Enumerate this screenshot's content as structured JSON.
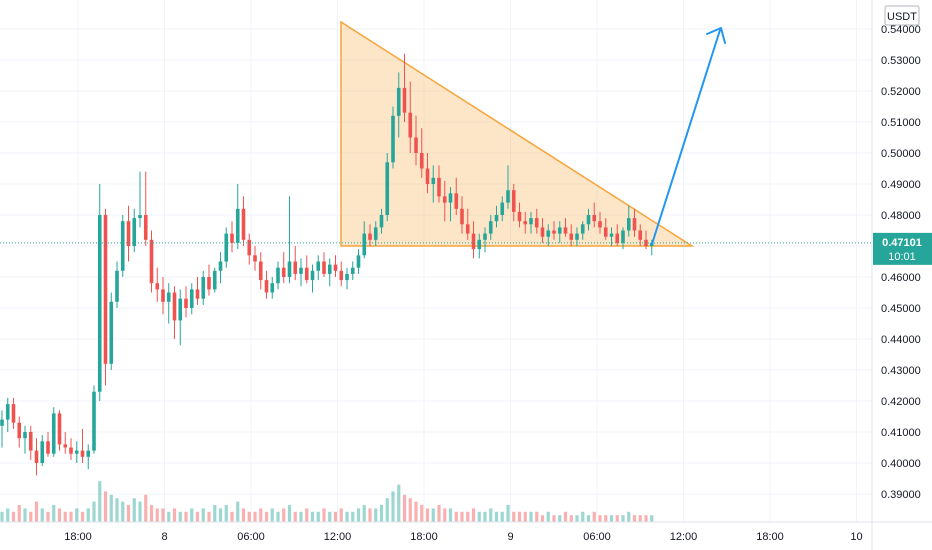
{
  "chart_data": {
    "type": "candlestick",
    "currency": "USDT",
    "ylim": [
      0.383,
      0.548
    ],
    "y_ticks": [
      0.39,
      0.4,
      0.41,
      0.42,
      0.43,
      0.44,
      0.45,
      0.46,
      0.47,
      0.48,
      0.49,
      0.5,
      0.51,
      0.52,
      0.53,
      0.54
    ],
    "y_tick_labels": [
      "0.39000",
      "0.40000",
      "0.41000",
      "0.42000",
      "0.43000",
      "0.44000",
      "0.45000",
      "0.46000",
      "0.47000",
      "0.48000",
      "0.49000",
      "0.50000",
      "0.51000",
      "0.52000",
      "0.53000",
      "0.54000"
    ],
    "x_ticks": [
      {
        "label": "18:00",
        "t": 0
      },
      {
        "label": "8",
        "t": 1
      },
      {
        "label": "06:00",
        "t": 2
      },
      {
        "label": "12:00",
        "t": 3
      },
      {
        "label": "18:00",
        "t": 4
      },
      {
        "label": "9",
        "t": 5
      },
      {
        "label": "06:00",
        "t": 6
      },
      {
        "label": "12:00",
        "t": 7
      },
      {
        "label": "18:00",
        "t": 8
      },
      {
        "label": "10",
        "t": 9
      }
    ],
    "last_price": 0.47101,
    "last_price_label": "0.47101",
    "countdown_label": "10:01",
    "colors": {
      "up": "#26a69a",
      "down": "#ef5350",
      "triangle": "#f7a43a",
      "arrow": "#2196f3",
      "grid": "#f0f3fa"
    },
    "candles": [
      [
        0.412,
        0.417,
        0.405,
        0.414
      ],
      [
        0.414,
        0.421,
        0.41,
        0.419
      ],
      [
        0.419,
        0.421,
        0.411,
        0.413
      ],
      [
        0.413,
        0.415,
        0.405,
        0.408
      ],
      [
        0.408,
        0.412,
        0.403,
        0.41
      ],
      [
        0.41,
        0.412,
        0.401,
        0.404
      ],
      [
        0.404,
        0.408,
        0.396,
        0.4
      ],
      [
        0.4,
        0.409,
        0.399,
        0.407
      ],
      [
        0.407,
        0.41,
        0.402,
        0.403
      ],
      [
        0.403,
        0.418,
        0.402,
        0.416
      ],
      [
        0.416,
        0.417,
        0.404,
        0.406
      ],
      [
        0.406,
        0.41,
        0.403,
        0.405
      ],
      [
        0.405,
        0.408,
        0.401,
        0.403
      ],
      [
        0.403,
        0.407,
        0.4,
        0.404
      ],
      [
        0.404,
        0.411,
        0.4,
        0.402
      ],
      [
        0.402,
        0.406,
        0.398,
        0.404
      ],
      [
        0.404,
        0.425,
        0.403,
        0.423
      ],
      [
        0.423,
        0.49,
        0.42,
        0.48
      ],
      [
        0.48,
        0.482,
        0.425,
        0.432
      ],
      [
        0.432,
        0.455,
        0.43,
        0.452
      ],
      [
        0.452,
        0.465,
        0.45,
        0.462
      ],
      [
        0.462,
        0.48,
        0.46,
        0.478
      ],
      [
        0.478,
        0.483,
        0.465,
        0.47
      ],
      [
        0.47,
        0.482,
        0.468,
        0.479
      ],
      [
        0.479,
        0.494,
        0.476,
        0.48
      ],
      [
        0.48,
        0.494,
        0.47,
        0.472
      ],
      [
        0.472,
        0.475,
        0.455,
        0.458
      ],
      [
        0.458,
        0.463,
        0.452,
        0.456
      ],
      [
        0.456,
        0.46,
        0.448,
        0.452
      ],
      [
        0.452,
        0.458,
        0.445,
        0.455
      ],
      [
        0.455,
        0.457,
        0.44,
        0.446
      ],
      [
        0.446,
        0.456,
        0.438,
        0.453
      ],
      [
        0.453,
        0.457,
        0.447,
        0.45
      ],
      [
        0.45,
        0.458,
        0.448,
        0.456
      ],
      [
        0.456,
        0.46,
        0.451,
        0.453
      ],
      [
        0.453,
        0.462,
        0.451,
        0.46
      ],
      [
        0.46,
        0.464,
        0.454,
        0.456
      ],
      [
        0.456,
        0.463,
        0.455,
        0.462
      ],
      [
        0.462,
        0.468,
        0.458,
        0.465
      ],
      [
        0.465,
        0.476,
        0.463,
        0.474
      ],
      [
        0.474,
        0.478,
        0.468,
        0.471
      ],
      [
        0.471,
        0.49,
        0.469,
        0.482
      ],
      [
        0.482,
        0.486,
        0.47,
        0.472
      ],
      [
        0.472,
        0.474,
        0.464,
        0.467
      ],
      [
        0.467,
        0.47,
        0.462,
        0.465
      ],
      [
        0.465,
        0.468,
        0.456,
        0.459
      ],
      [
        0.459,
        0.462,
        0.453,
        0.455
      ],
      [
        0.455,
        0.46,
        0.453,
        0.458
      ],
      [
        0.458,
        0.465,
        0.456,
        0.463
      ],
      [
        0.463,
        0.468,
        0.458,
        0.46
      ],
      [
        0.46,
        0.486,
        0.458,
        0.465
      ],
      [
        0.465,
        0.47,
        0.459,
        0.461
      ],
      [
        0.461,
        0.466,
        0.457,
        0.463
      ],
      [
        0.463,
        0.467,
        0.458,
        0.459
      ],
      [
        0.459,
        0.464,
        0.455,
        0.462
      ],
      [
        0.462,
        0.467,
        0.459,
        0.465
      ],
      [
        0.465,
        0.468,
        0.46,
        0.461
      ],
      [
        0.461,
        0.466,
        0.457,
        0.464
      ],
      [
        0.464,
        0.467,
        0.46,
        0.462
      ],
      [
        0.462,
        0.465,
        0.457,
        0.459
      ],
      [
        0.459,
        0.463,
        0.456,
        0.461
      ],
      [
        0.461,
        0.465,
        0.459,
        0.463
      ],
      [
        0.463,
        0.469,
        0.461,
        0.467
      ],
      [
        0.467,
        0.478,
        0.466,
        0.474
      ],
      [
        0.474,
        0.477,
        0.47,
        0.472
      ],
      [
        0.472,
        0.478,
        0.47,
        0.476
      ],
      [
        0.476,
        0.482,
        0.474,
        0.48
      ],
      [
        0.48,
        0.5,
        0.478,
        0.497
      ],
      [
        0.497,
        0.515,
        0.495,
        0.512
      ],
      [
        0.512,
        0.526,
        0.505,
        0.521
      ],
      [
        0.521,
        0.532,
        0.51,
        0.513
      ],
      [
        0.513,
        0.523,
        0.5,
        0.505
      ],
      [
        0.505,
        0.512,
        0.496,
        0.5
      ],
      [
        0.5,
        0.508,
        0.492,
        0.495
      ],
      [
        0.495,
        0.5,
        0.487,
        0.49
      ],
      [
        0.49,
        0.496,
        0.484,
        0.492
      ],
      [
        0.492,
        0.496,
        0.484,
        0.486
      ],
      [
        0.486,
        0.491,
        0.478,
        0.484
      ],
      [
        0.484,
        0.489,
        0.478,
        0.487
      ],
      [
        0.487,
        0.492,
        0.48,
        0.482
      ],
      [
        0.482,
        0.486,
        0.474,
        0.477
      ],
      [
        0.477,
        0.482,
        0.472,
        0.474
      ],
      [
        0.474,
        0.478,
        0.466,
        0.469
      ],
      [
        0.469,
        0.474,
        0.466,
        0.472
      ],
      [
        0.472,
        0.476,
        0.468,
        0.474
      ],
      [
        0.474,
        0.48,
        0.472,
        0.478
      ],
      [
        0.478,
        0.483,
        0.476,
        0.48
      ],
      [
        0.48,
        0.486,
        0.478,
        0.484
      ],
      [
        0.484,
        0.496,
        0.482,
        0.488
      ],
      [
        0.488,
        0.49,
        0.478,
        0.481
      ],
      [
        0.481,
        0.484,
        0.476,
        0.478
      ],
      [
        0.478,
        0.481,
        0.474,
        0.477
      ],
      [
        0.477,
        0.481,
        0.474,
        0.479
      ],
      [
        0.479,
        0.482,
        0.474,
        0.476
      ],
      [
        0.476,
        0.479,
        0.471,
        0.473
      ],
      [
        0.473,
        0.477,
        0.47,
        0.475
      ],
      [
        0.475,
        0.478,
        0.472,
        0.474
      ],
      [
        0.474,
        0.478,
        0.471,
        0.476
      ],
      [
        0.476,
        0.479,
        0.473,
        0.474
      ],
      [
        0.474,
        0.477,
        0.47,
        0.472
      ],
      [
        0.472,
        0.476,
        0.47,
        0.474
      ],
      [
        0.474,
        0.478,
        0.472,
        0.477
      ],
      [
        0.477,
        0.482,
        0.475,
        0.48
      ],
      [
        0.48,
        0.484,
        0.476,
        0.478
      ],
      [
        0.478,
        0.481,
        0.474,
        0.476
      ],
      [
        0.476,
        0.479,
        0.472,
        0.473
      ],
      [
        0.473,
        0.476,
        0.47,
        0.474
      ],
      [
        0.474,
        0.477,
        0.47,
        0.471
      ],
      [
        0.471,
        0.476,
        0.469,
        0.475
      ],
      [
        0.475,
        0.483,
        0.473,
        0.479
      ],
      [
        0.479,
        0.482,
        0.473,
        0.475
      ],
      [
        0.475,
        0.477,
        0.47,
        0.472
      ],
      [
        0.472,
        0.475,
        0.469,
        0.47
      ],
      [
        0.47,
        0.472,
        0.467,
        0.471
      ]
    ],
    "volume": [
      3,
      4,
      3,
      5,
      4,
      3,
      6,
      4,
      3,
      5,
      4,
      3,
      3,
      4,
      3,
      4,
      6,
      12,
      9,
      8,
      7,
      6,
      5,
      7,
      6,
      8,
      5,
      4,
      4,
      3,
      4,
      3,
      3,
      4,
      3,
      4,
      3,
      5,
      4,
      5,
      3,
      6,
      4,
      3,
      3,
      4,
      3,
      4,
      3,
      4,
      5,
      3,
      3,
      4,
      3,
      3,
      4,
      3,
      3,
      4,
      3,
      3,
      4,
      5,
      4,
      4,
      5,
      7,
      9,
      11,
      8,
      7,
      6,
      5,
      4,
      4,
      5,
      4,
      4,
      3,
      3,
      3,
      4,
      3,
      3,
      4,
      3,
      3,
      5,
      3,
      3,
      3,
      3,
      3,
      2,
      3,
      2,
      2,
      3,
      2,
      2,
      3,
      2,
      3,
      2,
      2,
      2,
      2,
      2,
      3,
      2,
      2,
      2,
      2
    ]
  }
}
